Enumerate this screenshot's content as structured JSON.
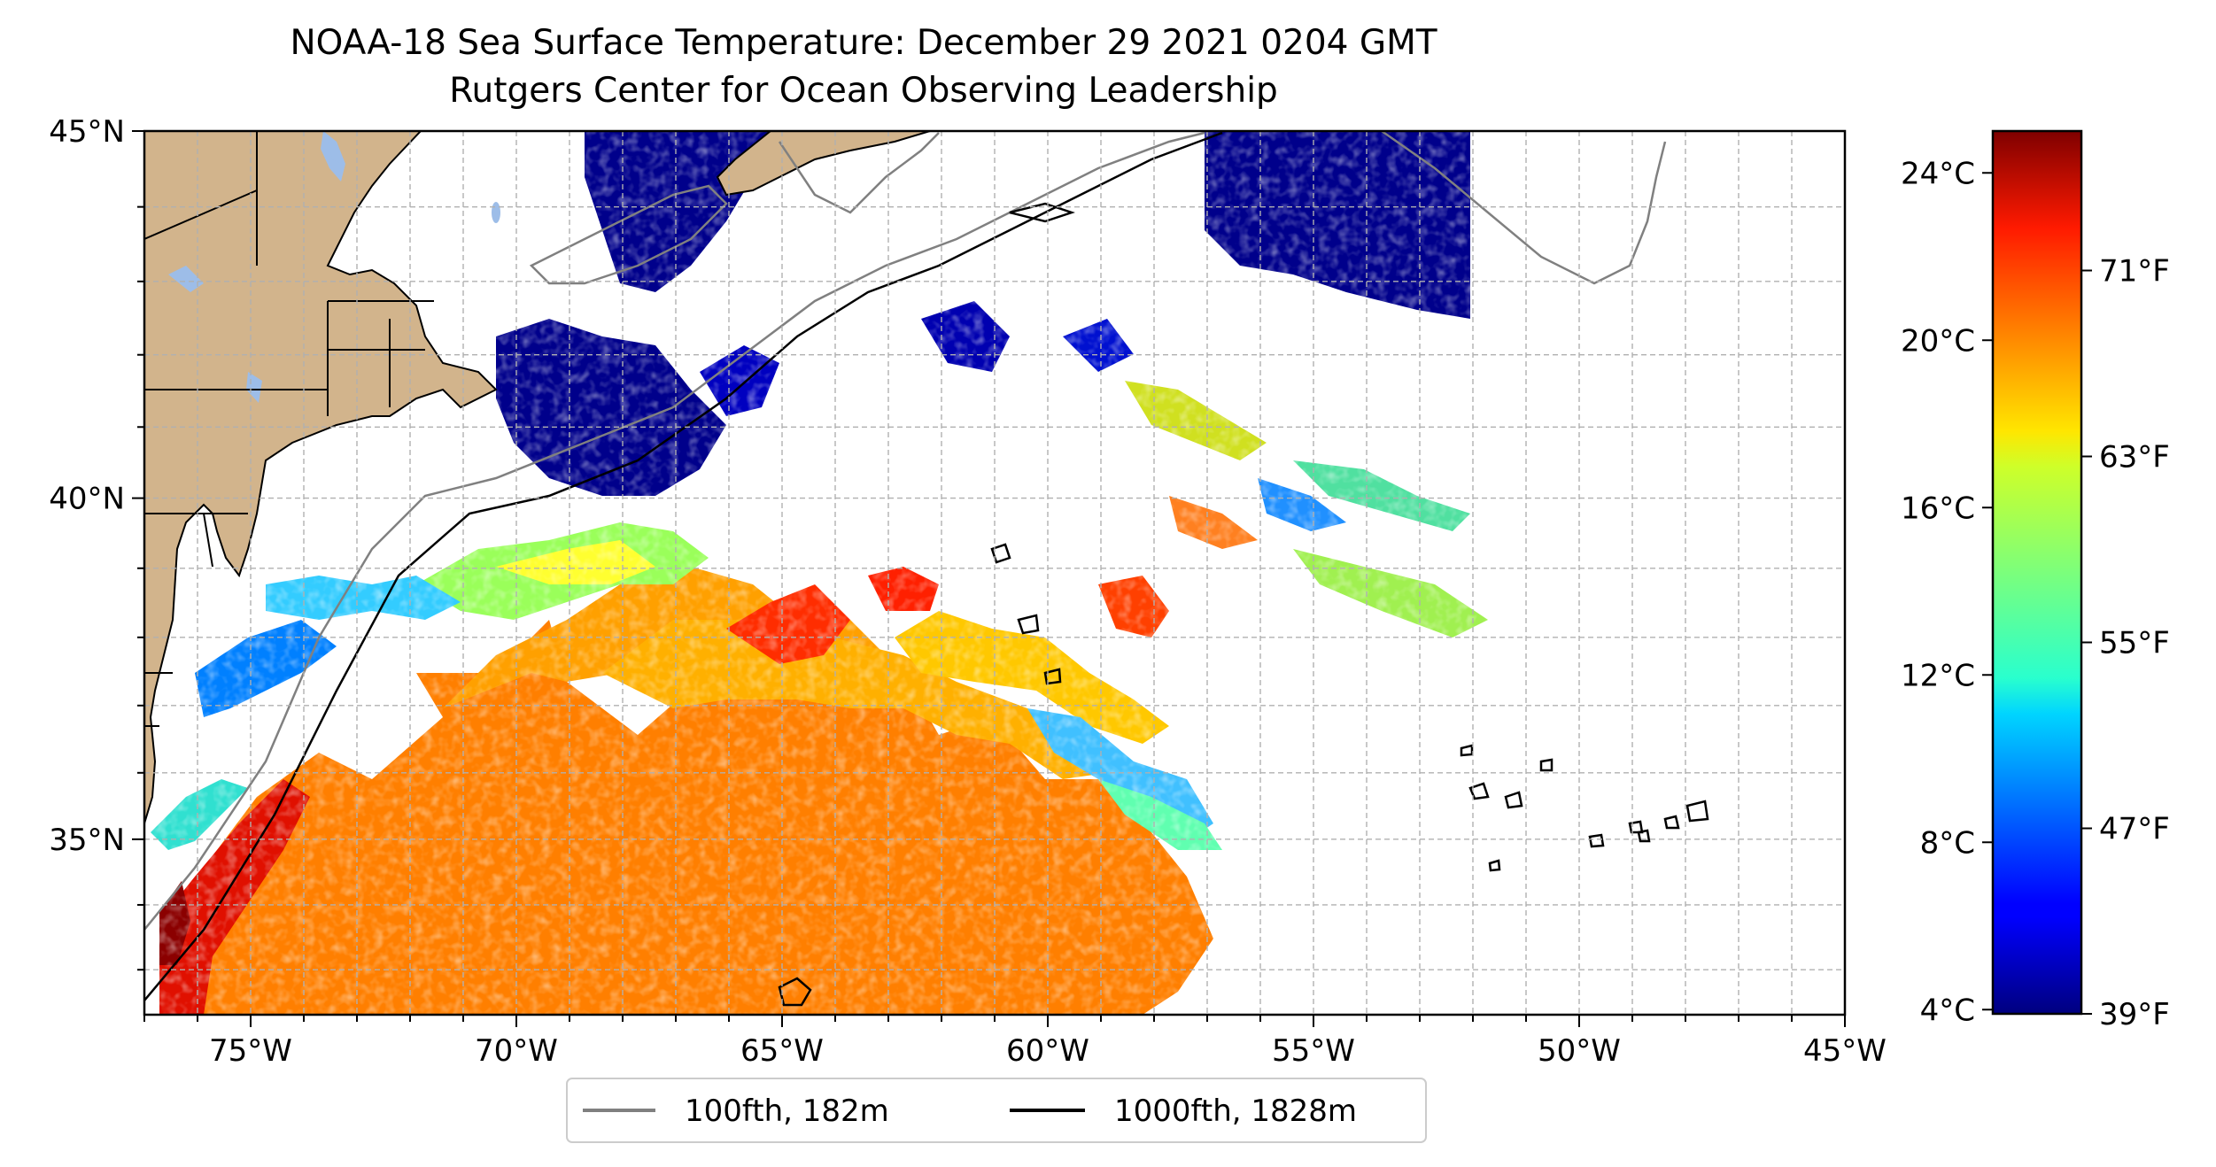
{
  "title": "NOAA-18 Sea Surface Temperature: December 29 2021 0204 GMT",
  "subtitle": "Rutgers Center for Ocean Observing Leadership",
  "map": {
    "lon_range": [
      -77,
      -45
    ],
    "lat_range": [
      32.3,
      45
    ],
    "lon_ticks": [
      "75°W",
      "70°W",
      "65°W",
      "60°W",
      "55°W",
      "50°W",
      "45°W"
    ],
    "lat_ticks": [
      "45°N",
      "40°N",
      "35°N"
    ],
    "grid": true,
    "land_color": "#d2b48c",
    "lake_color": "#9dbde8"
  },
  "legend": {
    "placement": "bottom-center",
    "items": [
      {
        "label": "100fth, 182m",
        "color": "#808080"
      },
      {
        "label": "1000fth, 1828m",
        "color": "#000000"
      }
    ]
  },
  "colorbar": {
    "colormap": "jet",
    "range_c": [
      3.9,
      25
    ],
    "celsius_ticks": [
      "4°C",
      "8°C",
      "12°C",
      "16°C",
      "20°C",
      "24°C"
    ],
    "fahrenheit_ticks": [
      "39°F",
      "47°F",
      "55°F",
      "63°F",
      "71°F"
    ]
  }
}
